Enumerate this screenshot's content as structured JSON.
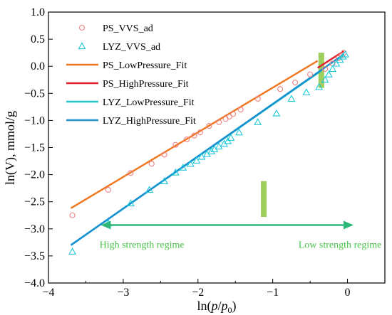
{
  "chart_data": {
    "type": "scatter",
    "xlim": [
      -4,
      0.5
    ],
    "ylim": [
      -4.0,
      1.0
    ],
    "x_ticks": [
      -4,
      -3,
      -2,
      -1,
      0
    ],
    "x_tick_labels": [
      "−4",
      "−3",
      "−2",
      "−1",
      "0"
    ],
    "y_ticks": [
      -4.0,
      -3.5,
      -3.0,
      -2.5,
      -2.0,
      -1.5,
      -1.0,
      -0.5,
      0.0,
      0.5,
      1.0
    ],
    "y_tick_labels": [
      "−4.0",
      "−3.5",
      "−3.0",
      "−2.5",
      "−2.0",
      "−1.5",
      "−1.0",
      "−0.5",
      "0.0",
      "0.5",
      "1.0"
    ],
    "xlabel": {
      "prefix": "ln(",
      "p": "p",
      "slash": "/",
      "p0": "p",
      "sub": "0",
      "suffix": ")"
    },
    "ylabel": "ln(V), mmol/g",
    "legend_position": "top-left",
    "series": [
      {
        "name": "PS_VVS_ad",
        "kind": "marker",
        "marker": "circle",
        "color": "#f08080",
        "x": [
          -3.68,
          -3.2,
          -2.9,
          -2.62,
          -2.45,
          -2.3,
          -2.15,
          -2.05,
          -1.97,
          -1.85,
          -1.72,
          -1.63,
          -1.58,
          -1.53,
          -1.43,
          -1.2,
          -0.9,
          -0.7,
          -0.5,
          -0.3,
          -0.2,
          -0.12,
          -0.08,
          -0.05
        ],
        "y": [
          -2.75,
          -2.28,
          -1.97,
          -1.8,
          -1.63,
          -1.45,
          -1.35,
          -1.28,
          -1.22,
          -1.1,
          -1.03,
          -0.97,
          -0.93,
          -0.88,
          -0.8,
          -0.6,
          -0.42,
          -0.3,
          -0.15,
          -0.05,
          0.05,
          0.15,
          0.2,
          0.25
        ]
      },
      {
        "name": "LYZ_VVS_ad",
        "kind": "marker",
        "marker": "triangle",
        "color": "#1ec8d8",
        "x": [
          -3.68,
          -3.2,
          -2.9,
          -2.65,
          -2.45,
          -2.3,
          -2.2,
          -2.1,
          -2.02,
          -1.95,
          -1.88,
          -1.82,
          -1.78,
          -1.72,
          -1.65,
          -1.6,
          -1.56,
          -1.45,
          -1.2,
          -0.95,
          -0.75,
          -0.55,
          -0.38,
          -0.3,
          -0.25,
          -0.2,
          -0.15,
          -0.1,
          -0.06,
          -0.03
        ],
        "y": [
          -3.42,
          -2.9,
          -2.53,
          -2.28,
          -2.12,
          -1.96,
          -1.87,
          -1.8,
          -1.74,
          -1.67,
          -1.62,
          -1.57,
          -1.53,
          -1.48,
          -1.43,
          -1.38,
          -1.32,
          -1.22,
          -1.03,
          -0.87,
          -0.6,
          -0.48,
          -0.38,
          -0.25,
          -0.15,
          -0.05,
          0.05,
          0.12,
          0.18,
          0.22
        ]
      },
      {
        "name": "PS_LowPressure_Fit",
        "kind": "line",
        "color": "#f07820",
        "x": [
          -3.7,
          -0.4
        ],
        "y": [
          -2.62,
          0.1
        ]
      },
      {
        "name": "PS_HighPressure_Fit",
        "kind": "line",
        "color": "#e0202a",
        "x": [
          -0.4,
          -0.05
        ],
        "y": [
          -0.03,
          0.28
        ]
      },
      {
        "name": "LYZ_LowPressure_Fit",
        "kind": "line",
        "color": "#20c8cc",
        "x": [
          -3.7,
          -0.35
        ],
        "y": [
          -3.3,
          -0.08
        ]
      },
      {
        "name": "LYZ_HighPressure_Fit",
        "kind": "line",
        "color": "#1890d0",
        "x": [
          -3.7,
          -0.05
        ],
        "y": [
          -3.3,
          0.22
        ]
      }
    ],
    "marker_highlights": [
      {
        "x": -0.35,
        "y0": -0.4,
        "y1": 0.25,
        "color": "#8dc63f"
      },
      {
        "x": -1.12,
        "y0": -2.78,
        "y1": -2.12,
        "color": "#8dc63f"
      }
    ],
    "regime_arrow": {
      "x0": -3.3,
      "x1": 0.08,
      "y": -2.93,
      "color": "#2db87a"
    },
    "annotations": [
      {
        "text": "High strength regime",
        "x": -2.75,
        "y": -3.35,
        "color": "#4cc24c"
      },
      {
        "text": "Low strength regime",
        "x": -0.1,
        "y": -3.35,
        "color": "#4cc24c"
      }
    ]
  }
}
